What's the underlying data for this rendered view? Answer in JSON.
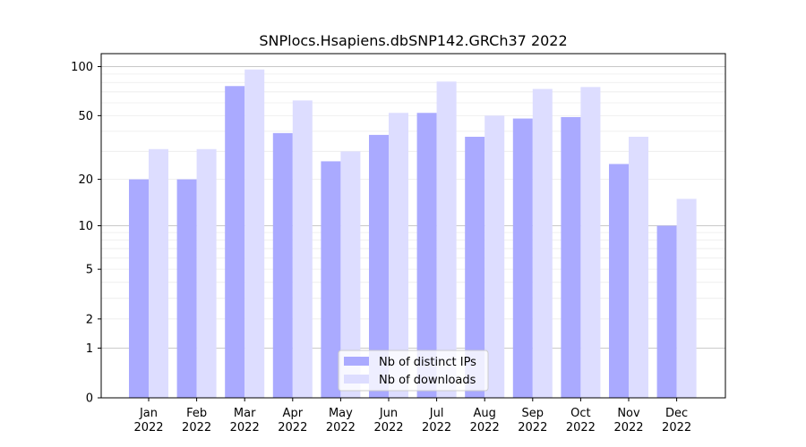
{
  "chart_data": {
    "type": "bar",
    "title": "SNPlocs.Hsapiens.dbSNP142.GRCh37 2022",
    "xlabel": "",
    "ylabel": "",
    "y_scale": "log1p",
    "ylim": [
      0,
      120
    ],
    "y_ticks": [
      0,
      1,
      2,
      5,
      10,
      20,
      50,
      100
    ],
    "categories": [
      [
        "Jan",
        "2022"
      ],
      [
        "Feb",
        "2022"
      ],
      [
        "Mar",
        "2022"
      ],
      [
        "Apr",
        "2022"
      ],
      [
        "May",
        "2022"
      ],
      [
        "Jun",
        "2022"
      ],
      [
        "Jul",
        "2022"
      ],
      [
        "Aug",
        "2022"
      ],
      [
        "Sep",
        "2022"
      ],
      [
        "Oct",
        "2022"
      ],
      [
        "Nov",
        "2022"
      ],
      [
        "Dec",
        "2022"
      ]
    ],
    "series": [
      {
        "name": "Nb of distinct IPs",
        "color": "#aaaaff",
        "values": [
          20,
          20,
          76,
          39,
          26,
          38,
          52,
          37,
          48,
          49,
          25,
          10
        ]
      },
      {
        "name": "Nb of downloads",
        "color": "#ddddff",
        "values": [
          31,
          31,
          96,
          62,
          30,
          52,
          81,
          50,
          73,
          75,
          37,
          15
        ]
      }
    ],
    "grid": true,
    "legend_position": "bottom-center"
  }
}
